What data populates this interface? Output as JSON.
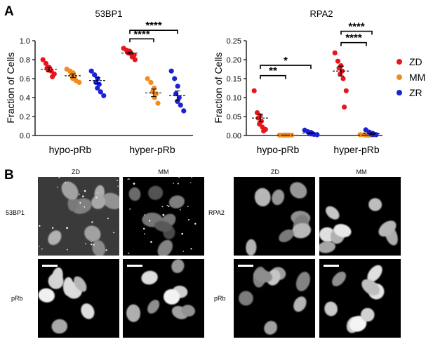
{
  "panel_labels": {
    "a": "A",
    "b": "B"
  },
  "colors": {
    "ZD": "#e8161c",
    "MM": "#f28c1e",
    "ZR": "#1c21d6",
    "axis": "#000000"
  },
  "legend": {
    "items": [
      "ZD",
      "MM",
      "ZR"
    ],
    "placement": "right"
  },
  "chart_data": [
    {
      "type": "scatter",
      "title": "53BP1",
      "xlabel": "",
      "ylabel": "Fraction of Cells",
      "ylim": [
        0,
        1.0
      ],
      "yticks": [
        "0.0",
        "0.2",
        "0.4",
        "0.6",
        "0.8",
        "1.0"
      ],
      "categories": [
        "hypo-pRb",
        "hyper-pRb"
      ],
      "series": [
        {
          "name": "ZD",
          "group": "hypo-pRb",
          "values": [
            0.8,
            0.76,
            0.72,
            0.71,
            0.7,
            0.69,
            0.68,
            0.65,
            0.62
          ],
          "mean": 0.7,
          "sem": 0.02
        },
        {
          "name": "MM",
          "group": "hypo-pRb",
          "values": [
            0.7,
            0.68,
            0.66,
            0.64,
            0.62,
            0.6,
            0.58,
            0.56
          ],
          "mean": 0.63,
          "sem": 0.02
        },
        {
          "name": "ZR",
          "group": "hypo-pRb",
          "values": [
            0.68,
            0.64,
            0.6,
            0.56,
            0.54,
            0.5,
            0.46,
            0.42
          ],
          "mean": 0.58,
          "sem": 0.03
        },
        {
          "name": "ZD",
          "group": "hyper-pRb",
          "values": [
            0.92,
            0.9,
            0.89,
            0.88,
            0.88,
            0.87,
            0.86,
            0.85,
            0.83,
            0.8
          ],
          "mean": 0.87,
          "sem": 0.01
        },
        {
          "name": "MM",
          "group": "hyper-pRb",
          "values": [
            0.6,
            0.56,
            0.5,
            0.46,
            0.44,
            0.4,
            0.34
          ],
          "mean": 0.45,
          "sem": 0.04
        },
        {
          "name": "ZR",
          "group": "hyper-pRb",
          "values": [
            0.68,
            0.6,
            0.52,
            0.44,
            0.4,
            0.36,
            0.32,
            0.26
          ],
          "mean": 0.42,
          "sem": 0.05
        }
      ],
      "significance": [
        {
          "label": "****",
          "from": "hyper-pRb ZD",
          "to": "hyper-pRb MM",
          "y": 1.02
        },
        {
          "label": "****",
          "from": "hyper-pRb ZD",
          "to": "hyper-pRb ZR",
          "y": 1.11
        }
      ]
    },
    {
      "type": "scatter",
      "title": "RPA2",
      "xlabel": "",
      "ylabel": "Fraction of Cells",
      "ylim": [
        0,
        0.25
      ],
      "yticks": [
        "0.00",
        "0.05",
        "0.10",
        "0.15",
        "0.20",
        "0.25"
      ],
      "categories": [
        "hypo-pRb",
        "hyper-pRb"
      ],
      "series": [
        {
          "name": "ZD",
          "group": "hypo-pRb",
          "values": [
            0.118,
            0.06,
            0.052,
            0.046,
            0.038,
            0.03,
            0.022,
            0.016,
            0.012
          ],
          "mean": 0.046,
          "sem": 0.01
        },
        {
          "name": "MM",
          "group": "hypo-pRb",
          "values": [
            0.001,
            0.001,
            0.001,
            0.001,
            0.001,
            0.001,
            0.001,
            0.001
          ],
          "mean": 0.001,
          "sem": 0.0
        },
        {
          "name": "ZR",
          "group": "hypo-pRb",
          "values": [
            0.014,
            0.01,
            0.008,
            0.006,
            0.005,
            0.004,
            0.003,
            0.002
          ],
          "mean": 0.006,
          "sem": 0.001
        },
        {
          "name": "ZD",
          "group": "hyper-pRb",
          "values": [
            0.218,
            0.196,
            0.184,
            0.178,
            0.17,
            0.162,
            0.15,
            0.118,
            0.075
          ],
          "mean": 0.17,
          "sem": 0.013
        },
        {
          "name": "MM",
          "group": "hyper-pRb",
          "values": [
            0.002,
            0.002,
            0.001,
            0.001,
            0.001,
            0.001
          ],
          "mean": 0.001,
          "sem": 0.0
        },
        {
          "name": "ZR",
          "group": "hyper-pRb",
          "values": [
            0.015,
            0.009,
            0.006,
            0.004,
            0.003,
            0.002,
            0.002
          ],
          "mean": 0.005,
          "sem": 0.002
        }
      ],
      "significance": [
        {
          "label": "**",
          "from": "hypo-pRb ZD",
          "to": "hypo-pRb MM",
          "y": 0.158
        },
        {
          "label": "*",
          "from": "hypo-pRb ZD",
          "to": "hypo-pRb ZR",
          "y": 0.185
        },
        {
          "label": "****",
          "from": "hyper-pRb ZD",
          "to": "hyper-pRb MM",
          "y": 0.245
        },
        {
          "label": "****",
          "from": "hyper-pRb ZD",
          "to": "hyper-pRb ZR",
          "y": 0.275
        }
      ]
    }
  ],
  "micrographs": {
    "left": {
      "col_labels": [
        "ZD",
        "MM"
      ],
      "row_labels": [
        "53BP1",
        "pRb"
      ]
    },
    "right": {
      "col_labels": [
        "ZD",
        "MM"
      ],
      "row_labels": [
        "RPA2",
        "pRb"
      ]
    }
  }
}
